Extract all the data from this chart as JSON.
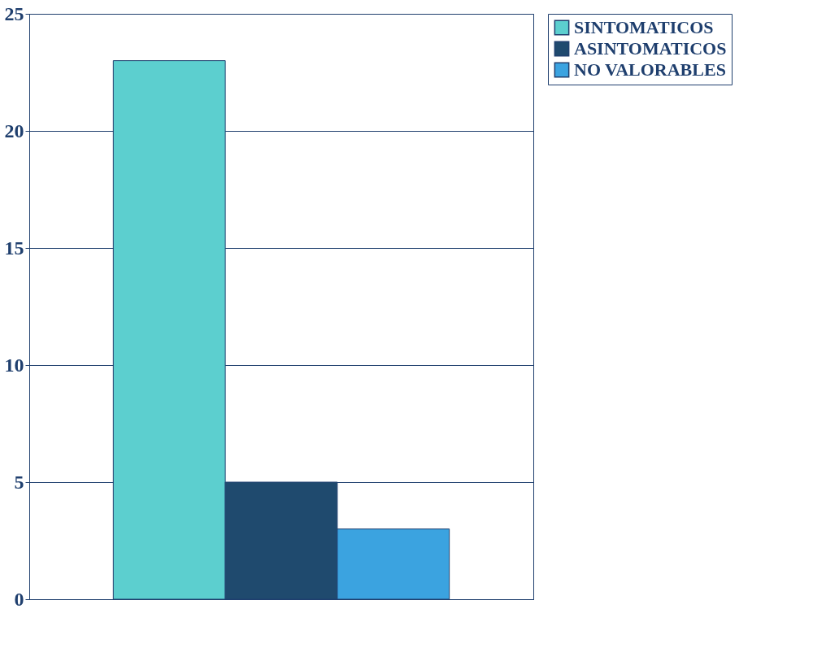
{
  "chart_data": {
    "type": "bar",
    "categories": [
      null
    ],
    "series": [
      {
        "name": "SINTOMATICOS",
        "color": "#5ccfcf",
        "values": [
          23
        ]
      },
      {
        "name": "ASINTOMATICOS",
        "color": "#1f4a6e",
        "values": [
          5
        ]
      },
      {
        "name": "NO VALORABLES",
        "color": "#3ba3e0",
        "values": [
          3
        ]
      }
    ],
    "ylim": [
      0,
      25
    ],
    "yticks": [
      0,
      5,
      10,
      15,
      20,
      25
    ],
    "grid": "y",
    "legend": "right"
  }
}
